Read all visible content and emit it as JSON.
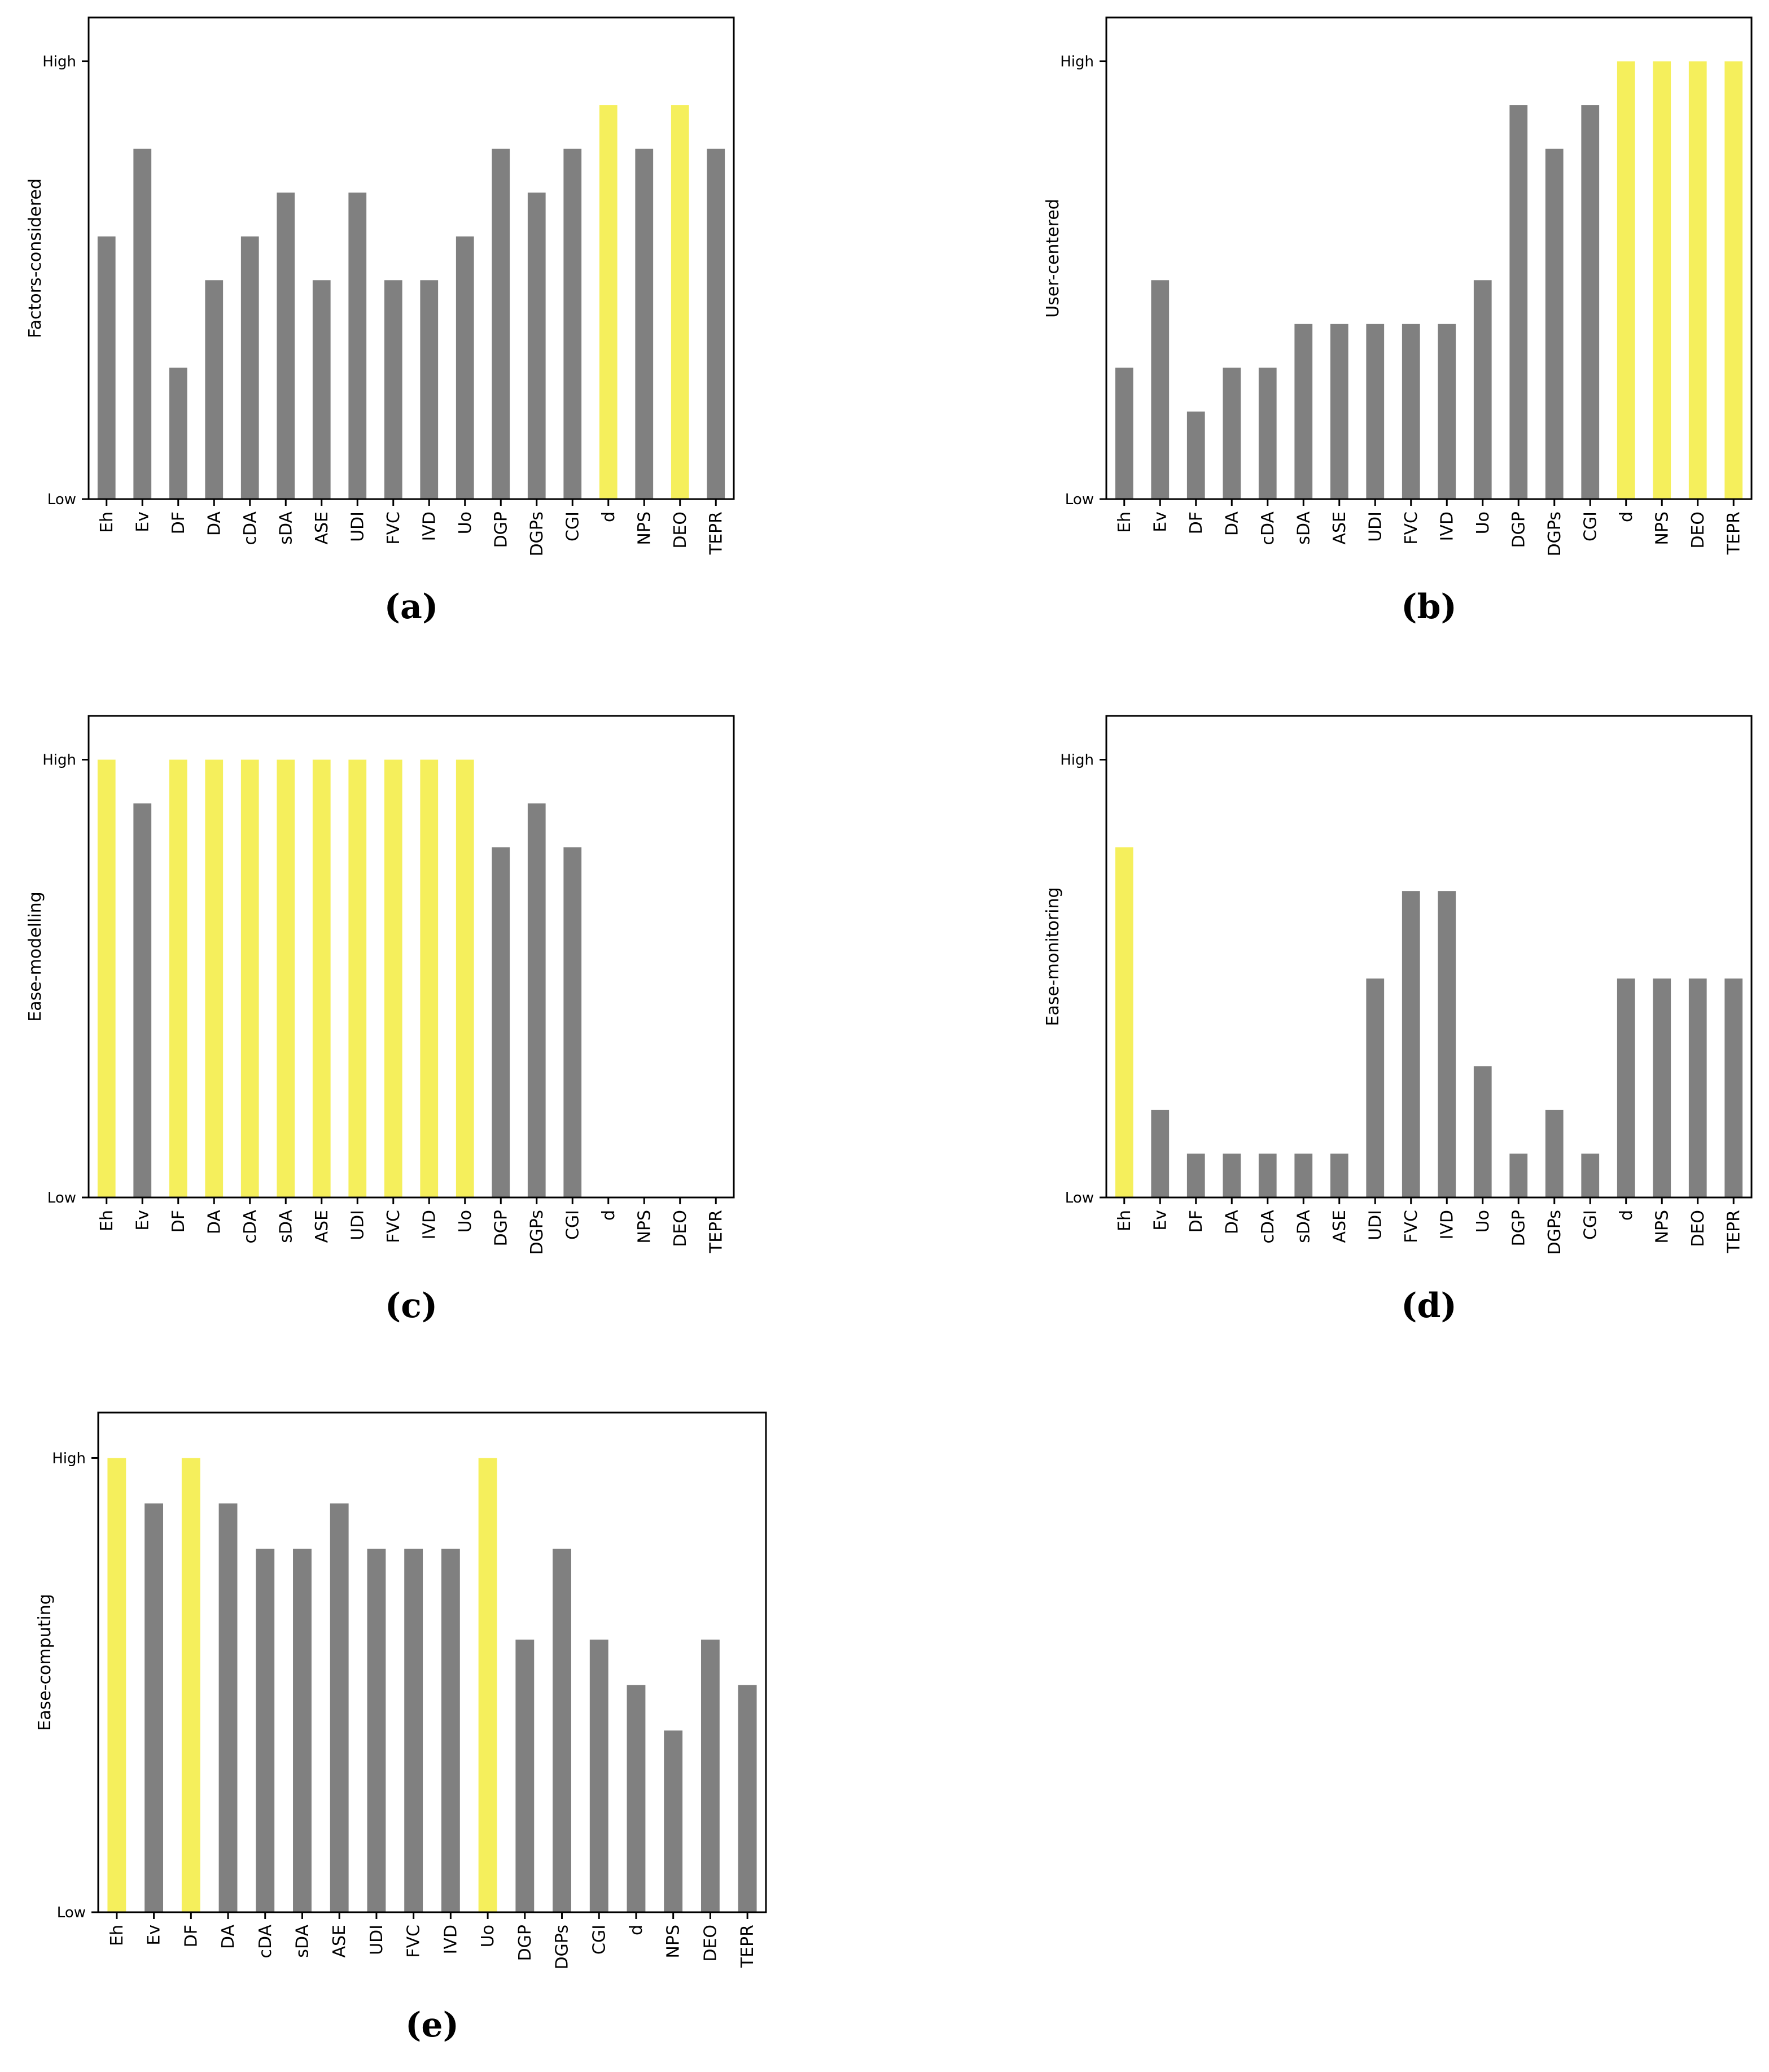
{
  "colors": {
    "normal": "#808080",
    "highlight": "#f5ef5c",
    "axis": "#000000"
  },
  "chart_data": [
    {
      "type": "bar",
      "panel": "(a)",
      "ylabel": "Factors-considered",
      "categories": [
        "Eh",
        "Ev",
        "DF",
        "DA",
        "cDA",
        "sDA",
        "ASE",
        "UDI",
        "FVC",
        "IVD",
        "Uo",
        "DGP",
        "DGPs",
        "CGI",
        "d",
        "NPS",
        "DEO",
        "TEPR"
      ],
      "values": [
        6,
        8,
        3,
        5,
        6,
        7,
        5,
        7,
        5,
        5,
        6,
        8,
        7,
        8,
        9,
        8,
        9,
        8
      ],
      "highlight": [
        14,
        16
      ],
      "ylim": [
        0,
        11
      ],
      "yticks": [
        {
          "value": 0,
          "label": "Low"
        },
        {
          "value": 10,
          "label": "High"
        }
      ],
      "grid": false,
      "legend": "none"
    },
    {
      "type": "bar",
      "panel": "(b)",
      "ylabel": "User-centered",
      "categories": [
        "Eh",
        "Ev",
        "DF",
        "DA",
        "cDA",
        "sDA",
        "ASE",
        "UDI",
        "FVC",
        "IVD",
        "Uo",
        "DGP",
        "DGPs",
        "CGI",
        "d",
        "NPS",
        "DEO",
        "TEPR"
      ],
      "values": [
        3,
        5,
        2,
        3,
        3,
        4,
        4,
        4,
        4,
        4,
        5,
        9,
        8,
        9,
        10,
        10,
        10,
        10
      ],
      "highlight": [
        14,
        15,
        16,
        17
      ],
      "ylim": [
        0,
        11
      ],
      "yticks": [
        {
          "value": 0,
          "label": "Low"
        },
        {
          "value": 10,
          "label": "High"
        }
      ],
      "grid": false,
      "legend": "none"
    },
    {
      "type": "bar",
      "panel": "(c)",
      "ylabel": "Ease-modelling",
      "categories": [
        "Eh",
        "Ev",
        "DF",
        "DA",
        "cDA",
        "sDA",
        "ASE",
        "UDI",
        "FVC",
        "IVD",
        "Uo",
        "DGP",
        "DGPs",
        "CGI",
        "d",
        "NPS",
        "DEO",
        "TEPR"
      ],
      "values": [
        10,
        9,
        10,
        10,
        10,
        10,
        10,
        10,
        10,
        10,
        10,
        8,
        9,
        8,
        0,
        0,
        0,
        0
      ],
      "highlight": [
        0,
        2,
        3,
        4,
        5,
        6,
        7,
        8,
        9,
        10
      ],
      "ylim": [
        0,
        11
      ],
      "yticks": [
        {
          "value": 0,
          "label": "Low"
        },
        {
          "value": 10,
          "label": "High"
        }
      ],
      "grid": false,
      "legend": "none"
    },
    {
      "type": "bar",
      "panel": "(d)",
      "ylabel": "Ease-monitoring",
      "categories": [
        "Eh",
        "Ev",
        "DF",
        "DA",
        "cDA",
        "sDA",
        "ASE",
        "UDI",
        "FVC",
        "IVD",
        "Uo",
        "DGP",
        "DGPs",
        "CGI",
        "d",
        "NPS",
        "DEO",
        "TEPR"
      ],
      "values": [
        8,
        2,
        1,
        1,
        1,
        1,
        1,
        5,
        7,
        7,
        3,
        1,
        2,
        1,
        5,
        5,
        5,
        5
      ],
      "highlight": [
        0
      ],
      "ylim": [
        0,
        11
      ],
      "yticks": [
        {
          "value": 0,
          "label": "Low"
        },
        {
          "value": 10,
          "label": "High"
        }
      ],
      "grid": false,
      "legend": "none"
    },
    {
      "type": "bar",
      "panel": "(e)",
      "ylabel": "Ease-computing",
      "categories": [
        "Eh",
        "Ev",
        "DF",
        "DA",
        "cDA",
        "sDA",
        "ASE",
        "UDI",
        "FVC",
        "IVD",
        "Uo",
        "DGP",
        "DGPs",
        "CGI",
        "d",
        "NPS",
        "DEO",
        "TEPR"
      ],
      "values": [
        10,
        9,
        10,
        9,
        8,
        8,
        9,
        8,
        8,
        8,
        10,
        6,
        8,
        6,
        5,
        4,
        6,
        5
      ],
      "highlight": [
        0,
        2,
        10
      ],
      "ylim": [
        0,
        11
      ],
      "yticks": [
        {
          "value": 0,
          "label": "Low"
        },
        {
          "value": 10,
          "label": "High"
        }
      ],
      "grid": false,
      "legend": "none"
    }
  ]
}
